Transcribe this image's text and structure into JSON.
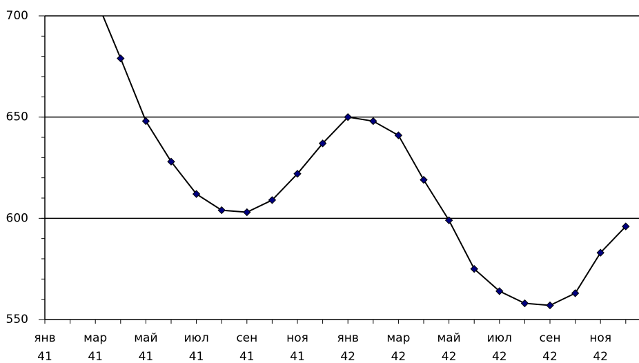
{
  "chart_data": {
    "type": "line",
    "categories": [
      "янв 41",
      null,
      "мар 41",
      null,
      "май 41",
      null,
      "июл 41",
      null,
      "сен 41",
      null,
      "ноя 41",
      null,
      "янв 42",
      null,
      "мар 42",
      null,
      "май 42",
      null,
      "июл 42",
      null,
      "сен 42",
      null,
      "ноя 42",
      null
    ],
    "series": [
      {
        "color": "#000080",
        "values": [
          null,
          null,
          709,
          679,
          648,
          628,
          612,
          604,
          603,
          609,
          622,
          637,
          650,
          648,
          641,
          619,
          599,
          575,
          564,
          558,
          557,
          563,
          583,
          596
        ]
      }
    ],
    "ylim": [
      550,
      700
    ],
    "yticks": [
      550,
      600,
      650,
      700
    ],
    "grid": true
  }
}
